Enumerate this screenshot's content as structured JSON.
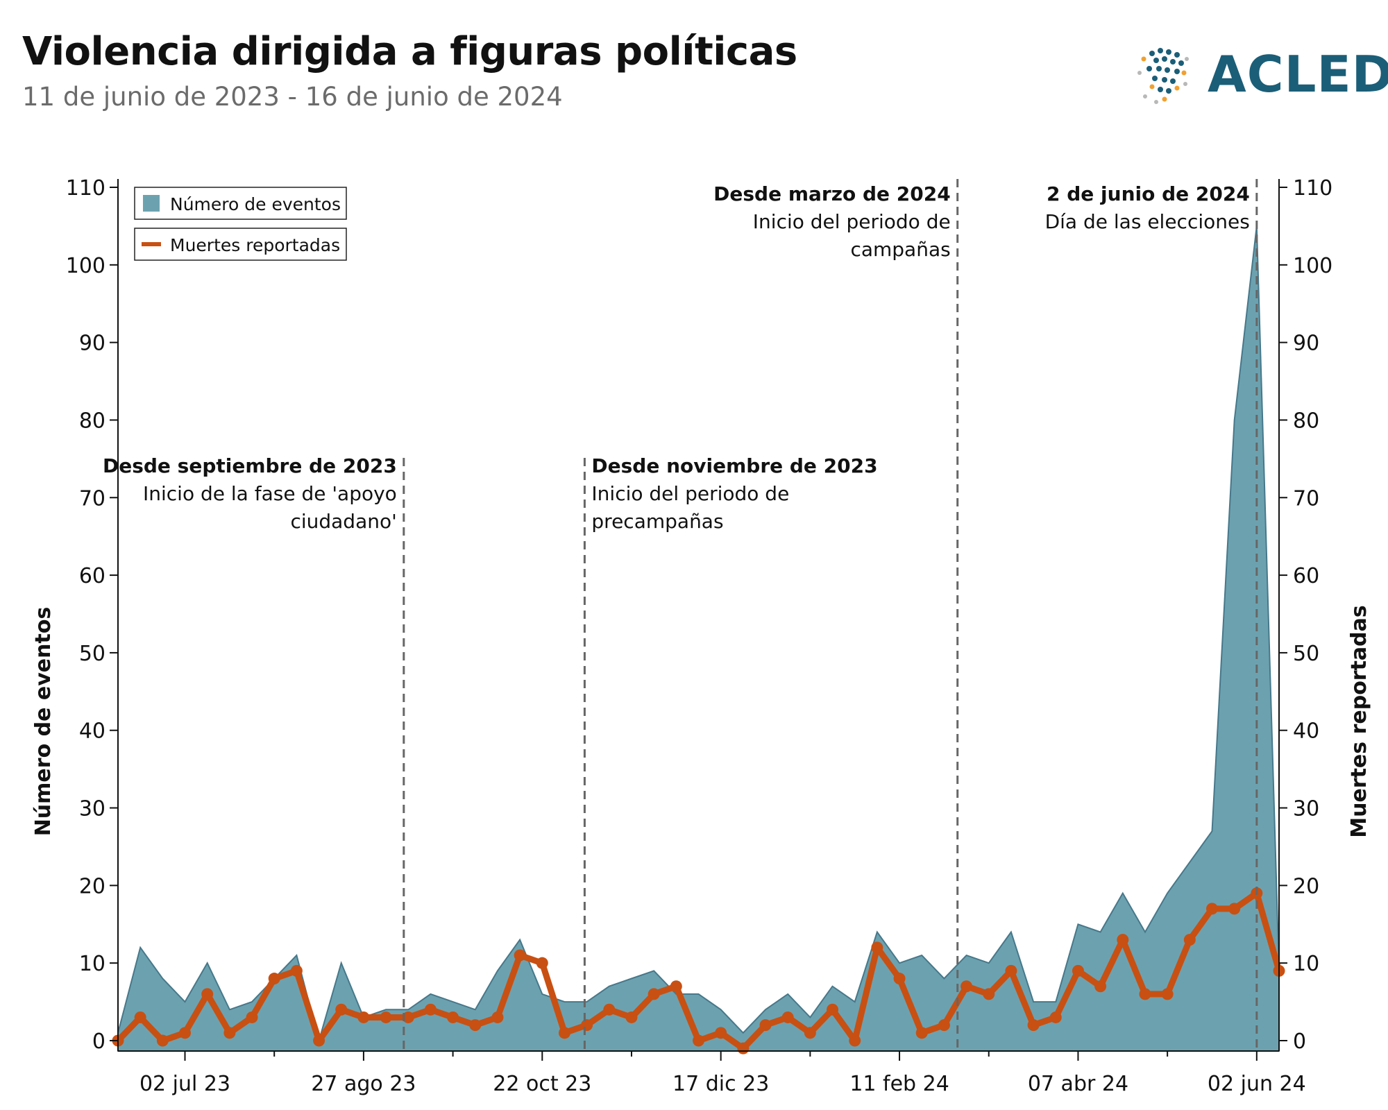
{
  "header": {
    "title": "Violencia dirigida a figuras políticas",
    "subtitle": "11 de junio de 2023 - 16 de junio de 2024",
    "logo_text": "ACLED"
  },
  "colors": {
    "area": "#6ca2b0",
    "area_stroke": "#46788a",
    "line": "#c85012",
    "vline": "#666666"
  },
  "chart_data": {
    "type": "area",
    "xlabel": "",
    "ylabel_left": "Número de eventos",
    "ylabel_right": "Muertes reportadas",
    "ylim": [
      0,
      110
    ],
    "y_ticks": [
      0,
      10,
      20,
      30,
      40,
      50,
      60,
      70,
      80,
      90,
      100,
      110
    ],
    "x_tick_labels": [
      "02 jul 23",
      "27 ago 23",
      "22 oct 23",
      "17 dic 23",
      "11 feb 24",
      "07 abr 24",
      "02 jun 24"
    ],
    "x_tick_weeks": [
      3,
      11,
      19,
      27,
      35,
      43,
      51
    ],
    "weeks": 53,
    "series": [
      {
        "name": "Número de eventos",
        "type": "area",
        "values": [
          1,
          12,
          8,
          5,
          10,
          4,
          5,
          8,
          11,
          0,
          10,
          3,
          4,
          4,
          6,
          5,
          4,
          9,
          13,
          6,
          5,
          5,
          7,
          8,
          9,
          6,
          6,
          4,
          1,
          4,
          6,
          3,
          7,
          5,
          14,
          10,
          11,
          8,
          11,
          10,
          14,
          5,
          5,
          15,
          14,
          19,
          14,
          19,
          23,
          27,
          80,
          105,
          9
        ]
      },
      {
        "name": "Muertes reportadas",
        "type": "line",
        "values": [
          0,
          3,
          0,
          1,
          6,
          1,
          3,
          8,
          9,
          0,
          4,
          3,
          3,
          3,
          4,
          3,
          2,
          3,
          11,
          10,
          1,
          2,
          4,
          3,
          6,
          7,
          0,
          1,
          -1,
          2,
          3,
          1,
          4,
          0,
          12,
          8,
          1,
          2,
          7,
          6,
          9,
          2,
          3,
          9,
          7,
          13,
          6,
          6,
          13,
          17,
          17,
          19,
          9
        ]
      }
    ],
    "legend": "top-left",
    "annotations": [
      {
        "week": 12.8,
        "bold": "Desde septiembre de 2023",
        "lines": [
          "Inicio de la fase de 'apoyo",
          "ciudadano'"
        ],
        "align": "right"
      },
      {
        "week": 20.9,
        "bold": "Desde noviembre de 2023",
        "lines": [
          "Inicio del periodo de",
          "precampañas"
        ],
        "align": "left"
      },
      {
        "week": 37.6,
        "bold": "Desde marzo de 2024",
        "lines": [
          "Inicio del periodo de",
          "campañas"
        ],
        "align": "right"
      },
      {
        "week": 51,
        "bold": "2 de junio de 2024",
        "lines": [
          "Día de las elecciones"
        ],
        "align": "right"
      }
    ]
  }
}
